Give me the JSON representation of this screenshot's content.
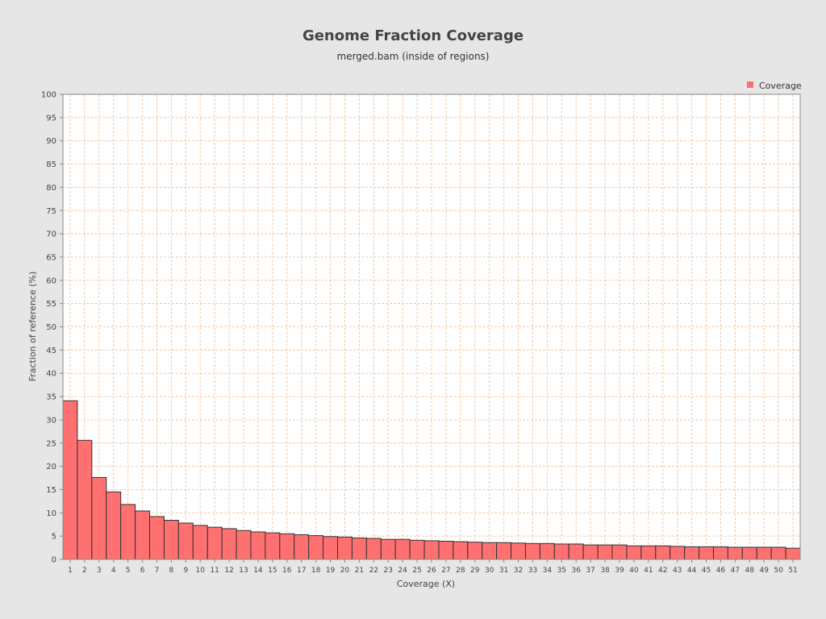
{
  "chart_data": {
    "type": "bar",
    "title": "Genome Fraction Coverage",
    "subtitle": "merged.bam (inside of regions)",
    "xlabel": "Coverage (X)",
    "ylabel": "Fraction of reference (%)",
    "ylim": [
      0,
      100
    ],
    "yticks": [
      0,
      5,
      10,
      15,
      20,
      25,
      30,
      35,
      40,
      45,
      50,
      55,
      60,
      65,
      70,
      75,
      80,
      85,
      90,
      95,
      100
    ],
    "grid": true,
    "legend_position": "top-right",
    "categories": [
      "1",
      "2",
      "3",
      "4",
      "5",
      "6",
      "7",
      "8",
      "9",
      "10",
      "11",
      "12",
      "13",
      "14",
      "15",
      "16",
      "17",
      "18",
      "19",
      "20",
      "21",
      "22",
      "23",
      "24",
      "25",
      "26",
      "27",
      "28",
      "29",
      "30",
      "31",
      "32",
      "33",
      "34",
      "35",
      "36",
      "37",
      "38",
      "39",
      "40",
      "41",
      "42",
      "43",
      "44",
      "45",
      "46",
      "47",
      "48",
      "49",
      "50",
      "51"
    ],
    "series": [
      {
        "name": "Coverage",
        "color": "#ff7070",
        "values": [
          34.1,
          25.6,
          17.6,
          14.5,
          11.8,
          10.4,
          9.2,
          8.4,
          7.8,
          7.3,
          6.9,
          6.6,
          6.2,
          5.9,
          5.7,
          5.5,
          5.3,
          5.1,
          4.9,
          4.8,
          4.6,
          4.5,
          4.3,
          4.3,
          4.1,
          4.0,
          3.9,
          3.8,
          3.7,
          3.6,
          3.6,
          3.5,
          3.4,
          3.4,
          3.3,
          3.3,
          3.1,
          3.1,
          3.1,
          2.9,
          2.9,
          2.9,
          2.8,
          2.7,
          2.7,
          2.7,
          2.6,
          2.6,
          2.6,
          2.6,
          2.4
        ]
      }
    ]
  },
  "colors": {
    "background": "#e6e6e6",
    "plot_background": "#ffffff",
    "grid": "#f0c8a8",
    "bar_fill": "#ff7070",
    "bar_stroke": "#333333"
  }
}
